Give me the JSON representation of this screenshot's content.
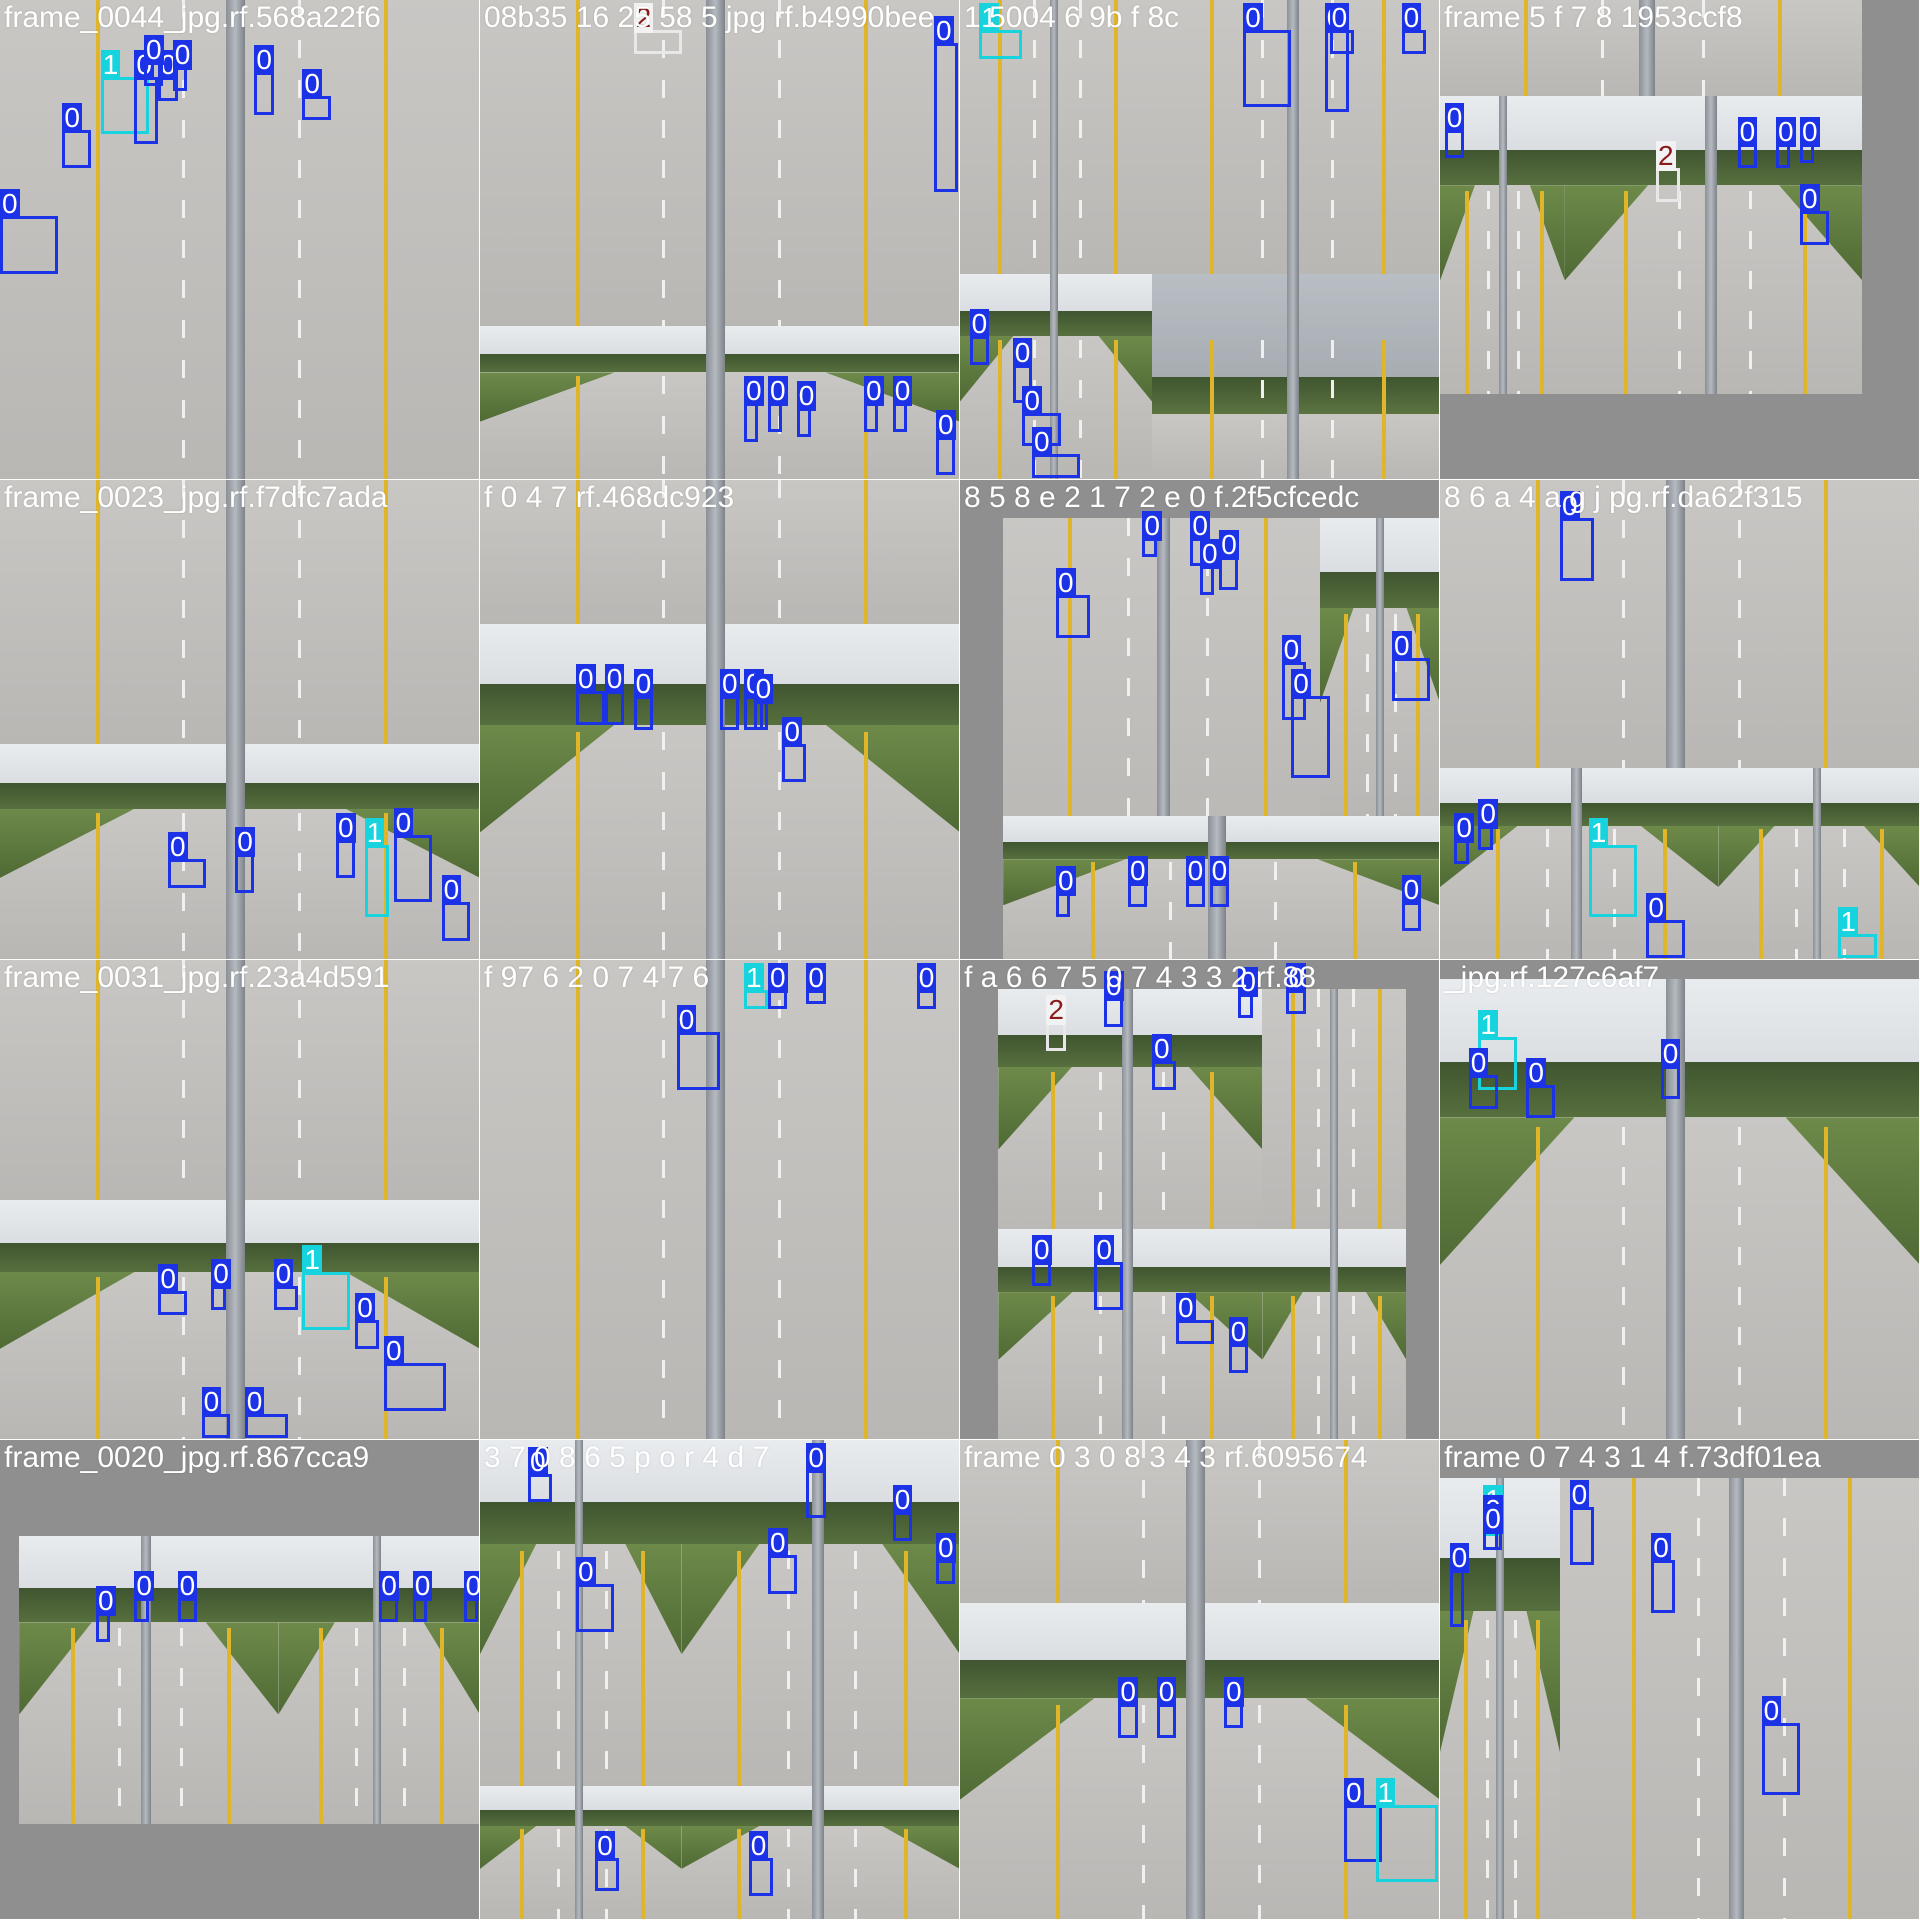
{
  "image": {
    "kind": "object-detection mosaic grid",
    "grid_rows": 4,
    "grid_cols": 4,
    "colors": {
      "class_0_box": "#1c32e6",
      "class_1_box": "#17d3dd",
      "class_2_box": "#e8e8e8",
      "label_text": "#ffffff"
    }
  },
  "tiles": [
    {
      "label": "frame_0044_jpg.rf.568a22f6",
      "boxes": [
        "1",
        "0",
        "0",
        "0",
        "0",
        "0",
        "0",
        "0",
        "0"
      ]
    },
    {
      "label": "08b35 16 25 58 5 jpg rf.b4990bee",
      "boxes": [
        "2",
        "0",
        "0",
        "0",
        "0",
        "0",
        "0",
        "0"
      ]
    },
    {
      "label": "1 5004 6 9b f 8c",
      "boxes": [
        "1",
        "0",
        "0",
        "0",
        "0",
        "0",
        "0",
        "0",
        "0"
      ]
    },
    {
      "label": "frame 5 f 7 8 1953ccf8",
      "boxes": [
        "0",
        "2",
        "0",
        "0",
        "0",
        "0"
      ]
    },
    {
      "label": "frame_0023_jpg.rf.f7dfc7ada",
      "boxes": [
        "0",
        "0",
        "0",
        "0",
        "1",
        "0"
      ]
    },
    {
      "label": "f 0 4 7 rf.468dc923",
      "boxes": [
        "0",
        "0",
        "0",
        "0",
        "0",
        "0",
        "0"
      ]
    },
    {
      "label": "8 5 8 e 2 1 7 2 e 0 f.2f5cfcedc",
      "boxes": [
        "0",
        "0",
        "0",
        "0",
        "0",
        "0",
        "0",
        "0",
        "0",
        "0",
        "0",
        "0",
        "0"
      ]
    },
    {
      "label": "8 6 a 4 a g j pg.rf.da62f315",
      "boxes": [
        "0",
        "0",
        "0",
        "1",
        "0",
        "1"
      ]
    },
    {
      "label": "frame_0031_jpg.rf.23a4d591",
      "boxes": [
        "0",
        "0",
        "0",
        "1",
        "0",
        "0",
        "0",
        "0"
      ]
    },
    {
      "label": "f 97 6 2 0 7 4 7 6",
      "boxes": [
        "1",
        "0",
        "0",
        "0",
        "0"
      ]
    },
    {
      "label": "f a 6 6 7 5 0 7 4 3 3 2 rf.88",
      "boxes": [
        "2",
        "0",
        "0",
        "0",
        "0",
        "0",
        "0",
        "0",
        "0"
      ]
    },
    {
      "label": "_jpg.rf.127c6af7",
      "boxes": [
        "1",
        "0",
        "0",
        "0"
      ]
    },
    {
      "label": "frame_0020_jpg.rf.867cca9",
      "boxes": [
        "0",
        "0",
        "0",
        "0",
        "0",
        "0"
      ]
    },
    {
      "label": "3 7 0 8 6 5 p o r 4 d 7",
      "boxes": [
        "0",
        "0",
        "0",
        "0",
        "0",
        "0",
        "0",
        "0"
      ]
    },
    {
      "label": "frame 0 3 0 8 3 4 3 rf.6095674",
      "boxes": [
        "0",
        "0",
        "0",
        "0",
        "1"
      ]
    },
    {
      "label": "frame 0 7 4 3 1 4 f.73df01ea",
      "boxes": [
        "1",
        "0",
        "0",
        "0",
        "0",
        "0",
        "0"
      ]
    }
  ]
}
